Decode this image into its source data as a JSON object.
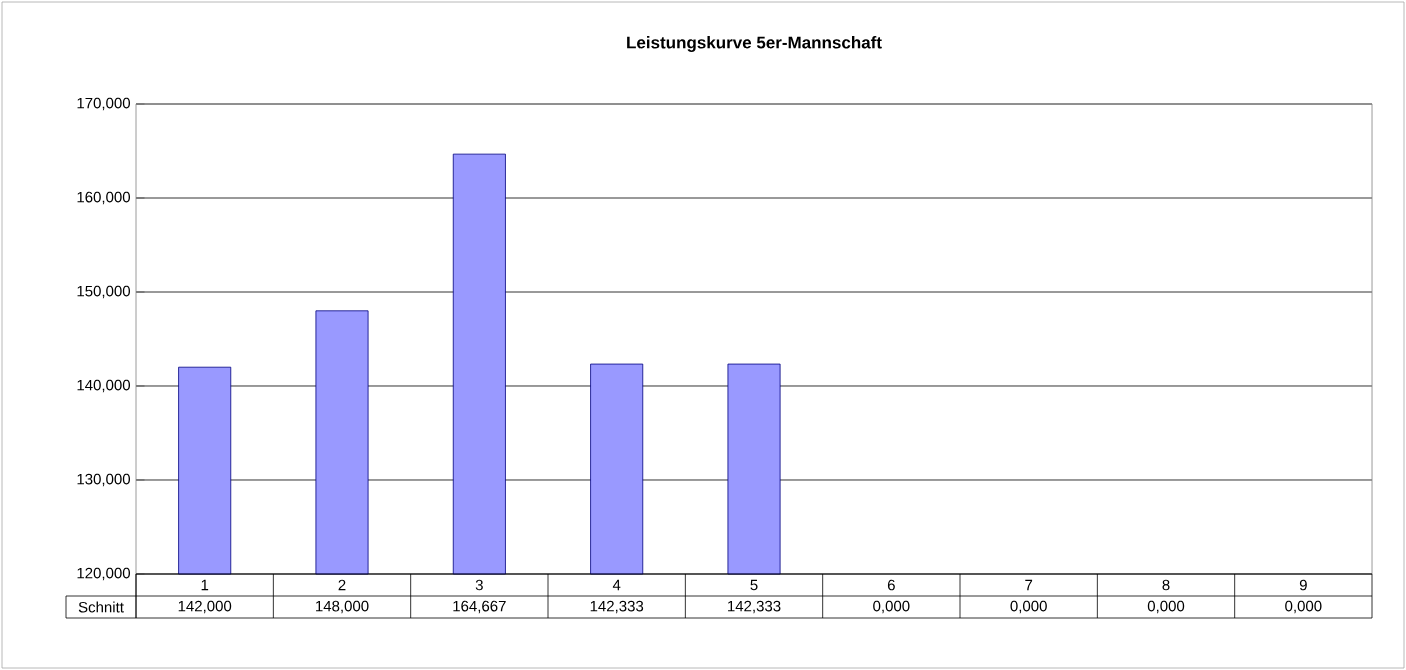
{
  "chart_data": {
    "type": "bar",
    "title": "Leistungskurve 5er-Mannschaft",
    "categories": [
      "1",
      "2",
      "3",
      "4",
      "5",
      "6",
      "7",
      "8",
      "9"
    ],
    "series": [
      {
        "name": "Schnitt",
        "color": "#9999ff",
        "values": [
          142,
          148,
          164.667,
          142.333,
          142.333,
          null,
          null,
          null,
          null
        ],
        "value_labels": [
          "142,000",
          "148,000",
          "164,667",
          "142,333",
          "142,333",
          "0,000",
          "0,000",
          "0,000",
          "0,000"
        ]
      }
    ],
    "ylim": [
      120,
      170
    ],
    "yticks": [
      {
        "value": 120,
        "label": "120,000"
      },
      {
        "value": 130,
        "label": "130,000"
      },
      {
        "value": 140,
        "label": "140,000"
      },
      {
        "value": 150,
        "label": "150,000"
      },
      {
        "value": 160,
        "label": "160,000"
      },
      {
        "value": 170,
        "label": "170,000"
      }
    ],
    "grid": "y",
    "legend": false
  }
}
